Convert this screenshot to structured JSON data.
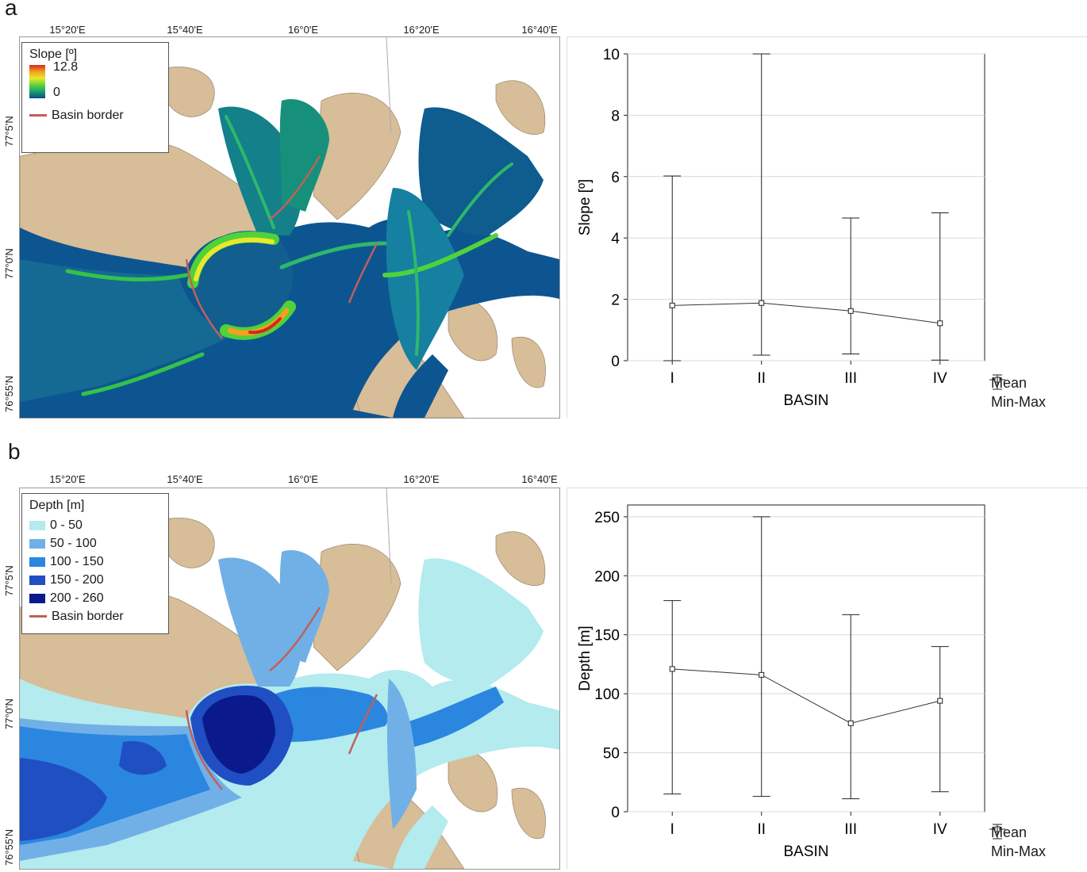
{
  "panels": [
    {
      "letter": "a",
      "longitudes": [
        "15°20'E",
        "15°40'E",
        "16°0'E",
        "16°20'E",
        "16°40'E"
      ],
      "latitudes": [
        "77°5'N",
        "77°0'N",
        "76°55'N"
      ],
      "legend": {
        "title": "Slope [º]",
        "max_label": "12.8",
        "min_label": "0",
        "border_label": "Basin border",
        "colors": [
          "#d6281b",
          "#f4a020",
          "#e9e92a",
          "#5fd23c",
          "#18a06b",
          "#0b4c84"
        ],
        "border_color": "#c0605a"
      },
      "chart_data": {
        "type": "scatter",
        "categories": [
          "I",
          "II",
          "III",
          "IV"
        ],
        "mean": [
          1.8,
          1.88,
          1.62,
          1.22
        ],
        "min": [
          0,
          0.18,
          0.22,
          0.02
        ],
        "max": [
          6.02,
          10,
          4.65,
          4.82
        ],
        "ylim": [
          0,
          10
        ],
        "yticks": [
          "0",
          "2",
          "4",
          "6",
          "8",
          "10"
        ],
        "xlabel": "BASIN",
        "ylabel": "Slope [º]",
        "legend_labels": [
          "Mean",
          "Min-Max"
        ]
      }
    },
    {
      "letter": "b",
      "longitudes": [
        "15°20'E",
        "15°40'E",
        "16°0'E",
        "16°20'E",
        "16°40'E"
      ],
      "latitudes": [
        "77°5'N",
        "77°0'N",
        "76°55'N"
      ],
      "legend": {
        "title": "Depth [m]",
        "classes": [
          {
            "label": "0 - 50",
            "color": "#b3ebee"
          },
          {
            "label": "50 - 100",
            "color": "#71b0e6"
          },
          {
            "label": "100 - 150",
            "color": "#2b86e0"
          },
          {
            "label": "150 - 200",
            "color": "#1f4fc2"
          },
          {
            "label": "200 - 260",
            "color": "#0a1a8c"
          }
        ],
        "border_label": "Basin border",
        "border_color": "#c0605a"
      },
      "chart_data": {
        "type": "scatter",
        "categories": [
          "I",
          "II",
          "III",
          "IV"
        ],
        "mean": [
          121,
          116,
          75,
          94
        ],
        "min": [
          15,
          13,
          11,
          17
        ],
        "max": [
          179,
          250,
          167,
          140
        ],
        "ylim": [
          0,
          260
        ],
        "yticks": [
          "0",
          "50",
          "100",
          "150",
          "200",
          "250"
        ],
        "xlabel": "BASIN",
        "ylabel": "Depth [m]",
        "legend_labels": [
          "Mean",
          "Min-Max"
        ]
      }
    }
  ],
  "land_color": "#d7bd98"
}
